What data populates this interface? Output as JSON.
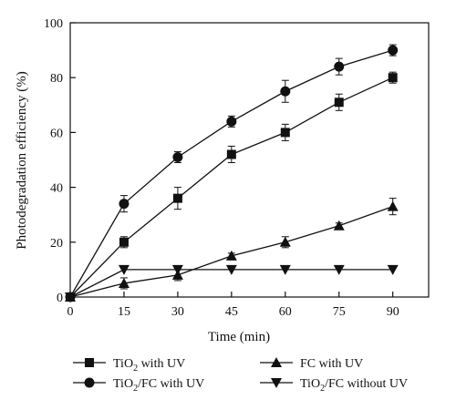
{
  "chart_data": {
    "type": "line",
    "xlabel": "Time (min)",
    "ylabel": "Photodegradation efficiency (%)",
    "xlim": [
      0,
      100
    ],
    "ylim": [
      0,
      100
    ],
    "x_ticks": [
      0,
      15,
      30,
      45,
      60,
      75,
      90
    ],
    "y_ticks": [
      0,
      20,
      40,
      60,
      80,
      100
    ],
    "grid": false,
    "legend_position": "bottom",
    "series": [
      {
        "name": "TiO2 with UV",
        "marker": "square",
        "x": [
          0,
          15,
          30,
          45,
          60,
          75,
          90
        ],
        "values": [
          0,
          20,
          36,
          52,
          60,
          71,
          80
        ],
        "error": [
          0,
          2,
          4,
          3,
          3,
          3,
          2
        ]
      },
      {
        "name": "TiO2/FC with UV",
        "marker": "circle",
        "x": [
          0,
          15,
          30,
          45,
          60,
          75,
          90
        ],
        "values": [
          0,
          34,
          51,
          64,
          75,
          84,
          90
        ],
        "error": [
          0,
          3,
          2,
          2,
          4,
          3,
          2
        ]
      },
      {
        "name": "FC with UV",
        "marker": "triangle-up",
        "x": [
          0,
          15,
          30,
          45,
          60,
          75,
          90
        ],
        "values": [
          0,
          5,
          8,
          15,
          20,
          26,
          33
        ],
        "error": [
          0,
          2,
          2,
          1,
          2,
          1,
          3
        ]
      },
      {
        "name": "TiO2/FC without UV",
        "marker": "triangle-down",
        "x": [
          0,
          15,
          30,
          45,
          60,
          75,
          90
        ],
        "values": [
          0,
          10,
          10,
          10,
          10,
          10,
          10
        ],
        "error": [
          0,
          0,
          0,
          0,
          0,
          0,
          0
        ]
      }
    ],
    "legend": [
      {
        "prefix": "TiO",
        "sub": "2",
        "suffix": " with UV"
      },
      {
        "prefix": "FC with UV",
        "sub": "",
        "suffix": ""
      },
      {
        "prefix": "TiO",
        "sub": "2",
        "suffix": "/FC with UV"
      },
      {
        "prefix": "TiO",
        "sub": "2",
        "suffix": "/FC without UV"
      }
    ],
    "colors": {
      "line": "#111111",
      "axis": "#111111"
    }
  }
}
